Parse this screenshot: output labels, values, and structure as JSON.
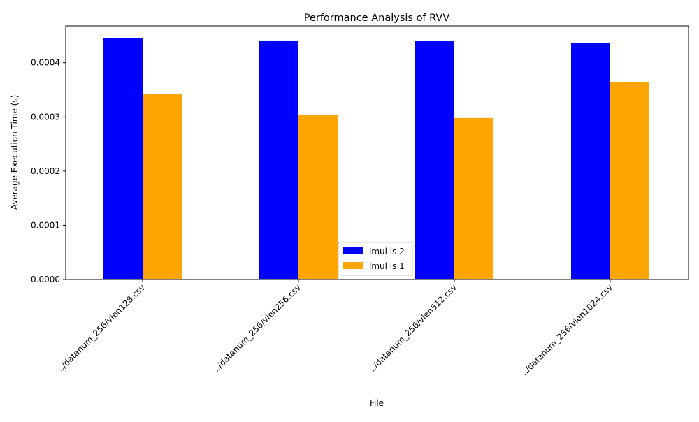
{
  "chart_data": {
    "type": "bar",
    "title": "Performance Analysis of RVV",
    "xlabel": "File",
    "ylabel": "Average Execution Time (s)",
    "categories": [
      "../datanum_256/vlen128.csv",
      "../datanum_256/vlen256.csv",
      "../datanum_256/vlen512.csv",
      "../datanum_256/vlen1024.csv"
    ],
    "series": [
      {
        "name": "lmul is 2",
        "color": "#0000ff",
        "values": [
          0.000445,
          0.000441,
          0.00044,
          0.000437
        ]
      },
      {
        "name": "lmul is 1",
        "color": "#ffa500",
        "values": [
          0.000343,
          0.000303,
          0.000298,
          0.000364
        ]
      }
    ],
    "ylim": [
      0,
      0.000468
    ],
    "yticks": [
      0,
      0.0001,
      0.0002,
      0.0003,
      0.0004
    ],
    "ytick_labels": [
      "0.0000",
      "0.0001",
      "0.0002",
      "0.0003",
      "0.0004"
    ],
    "grid": false,
    "legend_position": "bottom-center"
  }
}
